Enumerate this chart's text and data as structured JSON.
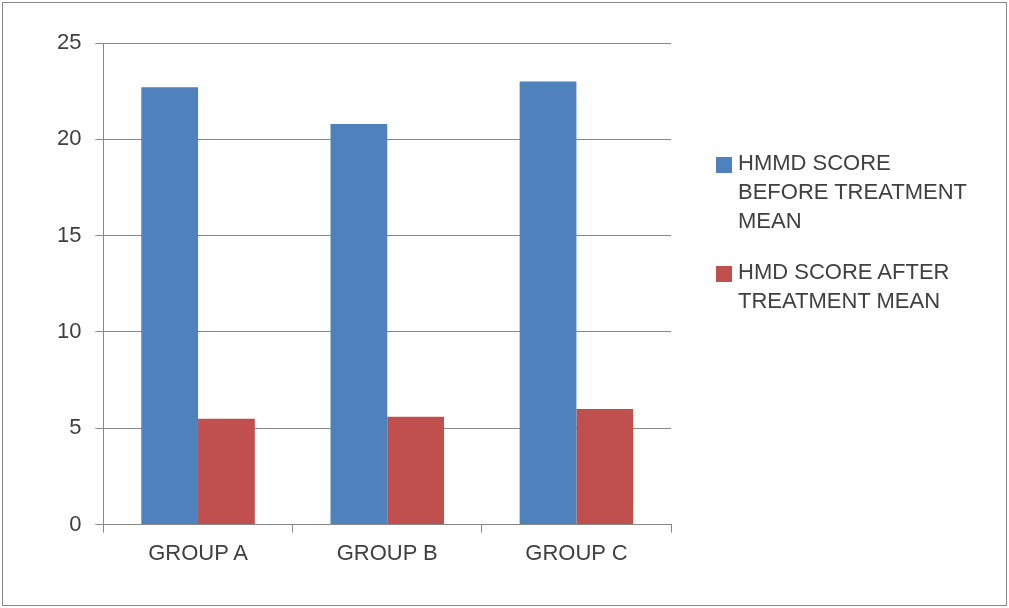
{
  "chart_data": {
    "type": "bar",
    "categories": [
      "GROUP A",
      "GROUP B",
      "GROUP C"
    ],
    "series": [
      {
        "name": "HMMD SCORE BEFORE TREATMENT MEAN",
        "color": "#4f81bd",
        "values": [
          22.7,
          20.8,
          23.0
        ]
      },
      {
        "name": "HMD SCORE AFTER TREATMENT MEAN",
        "color": "#c0504d",
        "values": [
          5.5,
          5.6,
          6.0
        ]
      }
    ],
    "ylim": [
      0,
      25
    ],
    "yticks": [
      0,
      5,
      10,
      15,
      20,
      25
    ],
    "grid": "y",
    "legend": "right"
  }
}
